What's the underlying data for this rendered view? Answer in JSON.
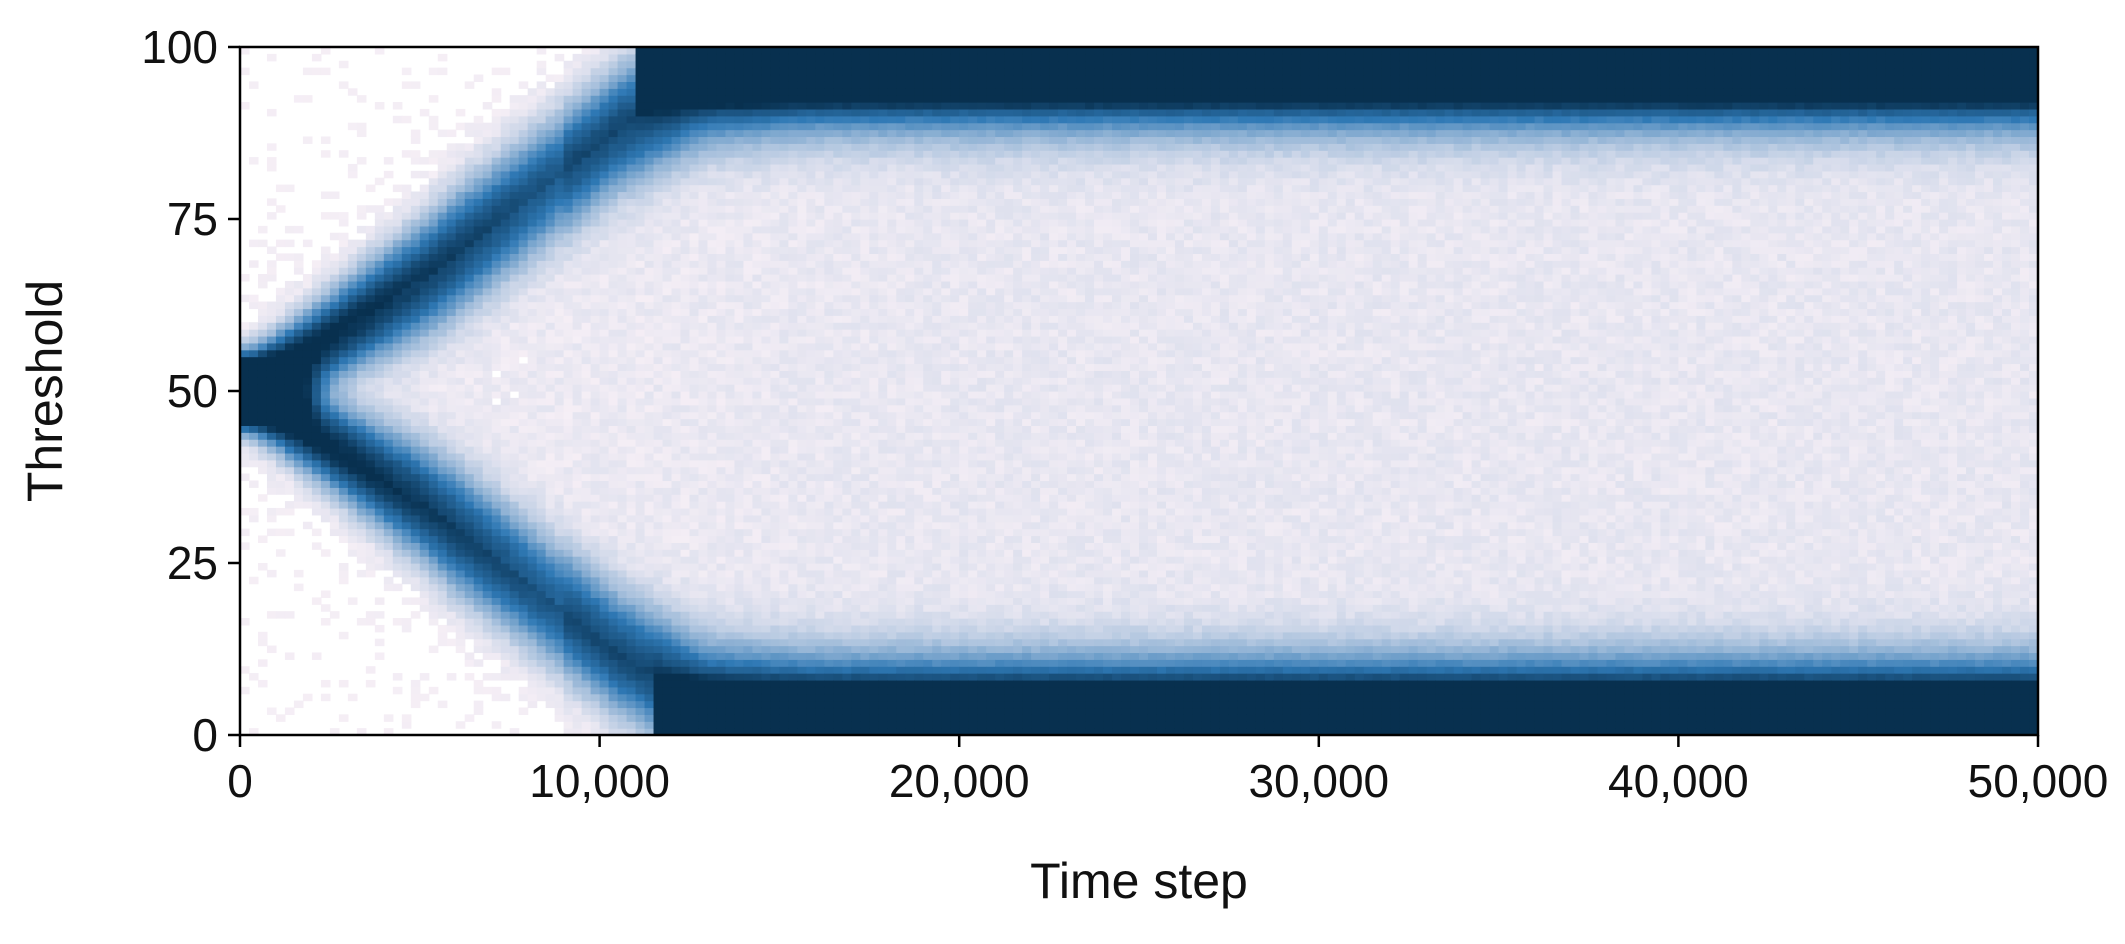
{
  "chart_data": {
    "type": "heatmap",
    "title": "",
    "xlabel": "Time step",
    "ylabel": "Threshold",
    "xlim": [
      0,
      50000
    ],
    "ylim": [
      0,
      100
    ],
    "x_ticks": [
      0,
      10000,
      20000,
      30000,
      40000,
      50000
    ],
    "x_tick_labels": [
      "0",
      "10,000",
      "20,000",
      "30,000",
      "40,000",
      "50,000"
    ],
    "y_ticks": [
      0,
      25,
      50,
      75,
      100
    ],
    "y_tick_labels": [
      "0",
      "25",
      "50",
      "75",
      "100"
    ],
    "colormap": {
      "low": "#fdf3f8",
      "mid": "#2f79b5",
      "high": "#08304f"
    },
    "density_model": {
      "initial_center": 50,
      "upper_branch": [
        [
          0,
          50
        ],
        [
          2000,
          56
        ],
        [
          5000,
          66
        ],
        [
          8000,
          78
        ],
        [
          10500,
          88
        ],
        [
          13000,
          94.5
        ],
        [
          16000,
          96
        ],
        [
          50000,
          96
        ]
      ],
      "lower_branch": [
        [
          0,
          50
        ],
        [
          2000,
          44
        ],
        [
          5000,
          34
        ],
        [
          8000,
          22
        ],
        [
          10500,
          12
        ],
        [
          13000,
          5
        ],
        [
          16000,
          3.5
        ],
        [
          50000,
          3.5
        ]
      ],
      "saturated_bands": [
        {
          "y_range": [
            93,
            100
          ],
          "x_start": 11000
        },
        {
          "y_range": [
            0,
            6.5
          ],
          "x_start": 11500
        }
      ],
      "background_spread_until": 19000
    }
  }
}
